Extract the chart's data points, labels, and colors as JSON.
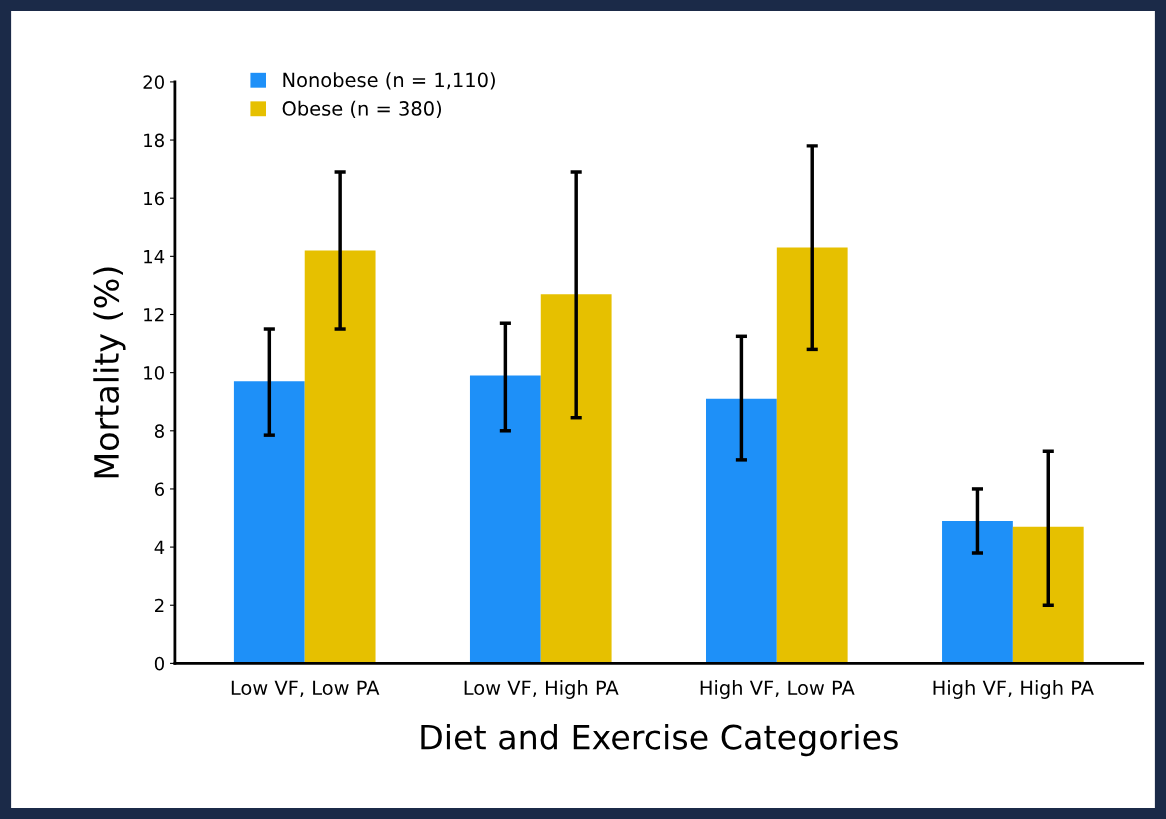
{
  "chart_data": {
    "type": "bar",
    "xlabel": "Diet and Exercise Categories",
    "ylabel": "Mortality (%)",
    "categories": [
      "Low VF, Low PA",
      "Low VF, High PA",
      "High VF, Low PA",
      "High VF, High PA"
    ],
    "series": [
      {
        "name": "Nonobese (n = 1,110)",
        "color": "#1e90f8",
        "values": [
          9.7,
          9.9,
          9.1,
          4.9
        ],
        "errors": [
          [
            7.85,
            11.5
          ],
          [
            8.0,
            11.7
          ],
          [
            7.0,
            11.25
          ],
          [
            3.8,
            6.0
          ]
        ]
      },
      {
        "name": "Obese (n = 380)",
        "color": "#e6c000",
        "values": [
          14.2,
          12.7,
          14.3,
          4.7
        ],
        "errors": [
          [
            11.5,
            16.9
          ],
          [
            8.45,
            16.9
          ],
          [
            10.8,
            17.8
          ],
          [
            2.0,
            7.3
          ]
        ]
      }
    ],
    "ylim": [
      0,
      20
    ],
    "yticks": [
      0,
      2,
      4,
      6,
      8,
      10,
      12,
      14,
      16,
      18,
      20
    ],
    "grid": false,
    "legend": "top left"
  }
}
